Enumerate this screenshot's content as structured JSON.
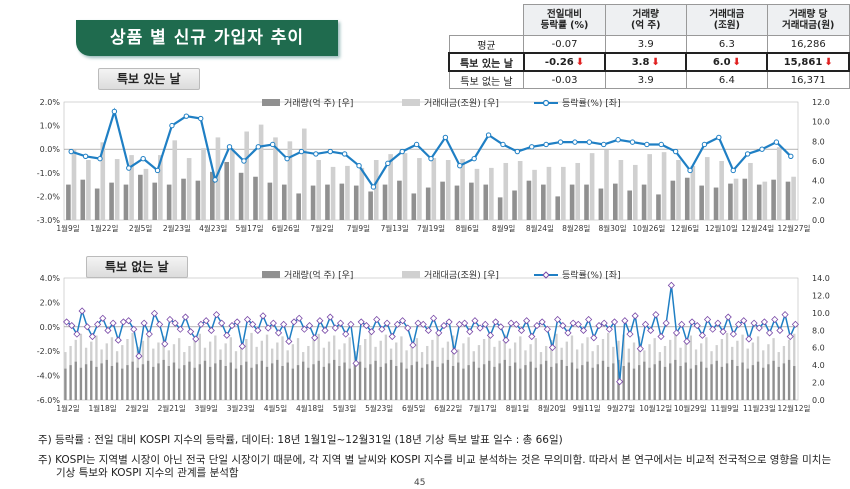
{
  "title": "상품 별 신규 가입자 추이",
  "table": {
    "headers": [
      "",
      "전일대비\n등락률 (%)",
      "거래량\n(억 주)",
      "거래대금\n(조원)",
      "거래량 당\n거래대금(원)"
    ],
    "rows": [
      {
        "label": "평균",
        "values": [
          "-0.07",
          "3.9",
          "6.3",
          "16,286"
        ],
        "arrows": [
          false,
          false,
          false,
          false
        ],
        "highlight": false
      },
      {
        "label": "특보 있는 날",
        "values": [
          "-0.26",
          "3.8",
          "6.0",
          "15,861"
        ],
        "arrows": [
          true,
          true,
          true,
          true
        ],
        "highlight": true
      },
      {
        "label": "특보 없는 날",
        "values": [
          "-0.03",
          "3.9",
          "6.4",
          "16,371"
        ],
        "arrows": [
          false,
          false,
          false,
          false
        ],
        "highlight": false
      }
    ]
  },
  "colors": {
    "volume": "#909090",
    "value": "#d0d0d0",
    "line": "#1f7fc4",
    "marker_fill": "#ffffff",
    "marker1": "#1f7fc4",
    "marker2": "#7a4aa8",
    "arrow": "#e02020"
  },
  "chart_data": [
    {
      "type": "bar+line",
      "subtitle": "특보 있는 날",
      "legend": [
        "거래량(억 주) [우]",
        "거래대금(조원) [우]",
        "등락률(%) [좌]"
      ],
      "yleft": {
        "min": -3.0,
        "max": 2.0,
        "ticks": [
          "2.0%",
          "1.0%",
          "0.0%",
          "-1.0%",
          "-2.0%",
          "-3.0%"
        ]
      },
      "yright": {
        "min": 0,
        "max": 12,
        "ticks": [
          "12.0",
          "10.0",
          "8.0",
          "6.0",
          "4.0",
          "2.0",
          "0.0"
        ]
      },
      "xticks": [
        "1월9일",
        "1월22일",
        "2월5일",
        "2월23일",
        "4월23일",
        "5월17일",
        "6월26일",
        "7월2일",
        "7월9일",
        "7월13일",
        "7월19일",
        "8월6일",
        "8월9일",
        "8월24일",
        "8월28일",
        "8월30일",
        "10월26일",
        "12월6일",
        "12월10일",
        "12월24일",
        "12월27일"
      ],
      "volume": [
        3.6,
        4.1,
        3.2,
        3.8,
        3.6,
        4.6,
        3.8,
        3.6,
        4.2,
        4.0,
        4.9,
        5.9,
        4.8,
        4.4,
        3.8,
        3.6,
        2.7,
        3.5,
        3.6,
        3.7,
        3.5,
        2.9,
        3.6,
        4.0,
        2.7,
        3.3,
        3.9,
        3.5,
        3.8,
        3.6,
        2.3,
        3.0,
        4.0,
        3.6,
        2.4,
        3.6,
        3.6,
        3.2,
        3.7,
        3.0,
        3.6,
        2.6,
        4.0,
        4.3,
        3.5,
        3.3,
        3.7,
        4.2,
        3.6,
        4.1,
        3.9
      ],
      "value": [
        7.2,
        6.1,
        7.9,
        6.2,
        6.6,
        5.2,
        6.6,
        8.1,
        6.3,
        7.3,
        8.4,
        7.3,
        9.0,
        9.7,
        8.4,
        8.0,
        9.3,
        6.1,
        5.4,
        5.5,
        5.3,
        6.1,
        6.7,
        6.8,
        6.3,
        6.3,
        6.1,
        6.2,
        5.2,
        5.3,
        5.8,
        6.0,
        5.1,
        5.4,
        5.4,
        5.8,
        6.8,
        7.2,
        6.1,
        5.6,
        6.7,
        6.9,
        6.1,
        5.5,
        6.4,
        6.0,
        4.2,
        5.8,
        3.9,
        7.4,
        4.4
      ],
      "pct": [
        -0.1,
        -0.3,
        -0.4,
        1.6,
        -0.8,
        -0.4,
        -0.9,
        1.0,
        1.4,
        1.3,
        -1.3,
        0.1,
        -0.5,
        0.1,
        0.2,
        -0.4,
        -0.1,
        -0.2,
        -0.1,
        -0.2,
        -0.7,
        -1.6,
        -0.6,
        -0.1,
        0.2,
        -0.4,
        0.5,
        -0.7,
        -0.4,
        0.6,
        0.2,
        -0.1,
        0.1,
        0.2,
        0.3,
        0.3,
        0.3,
        0.2,
        0.4,
        0.3,
        0.2,
        0.2,
        -0.1,
        -0.9,
        0.2,
        0.5,
        -0.9,
        -0.2,
        0.0,
        0.3,
        -0.3
      ]
    },
    {
      "type": "bar+line",
      "subtitle": "특보 없는 날",
      "legend": [
        "거래량(억 주) [우]",
        "거래대금(조원) [우]",
        "등락률(%) [좌]"
      ],
      "yleft": {
        "min": -6.0,
        "max": 4.0,
        "ticks": [
          "4.0%",
          "2.0%",
          "0.0%",
          "-2.0%",
          "-4.0%",
          "-6.0%"
        ]
      },
      "yright": {
        "min": 0,
        "max": 14,
        "ticks": [
          "14.0",
          "12.0",
          "10.0",
          "8.0",
          "6.0",
          "4.0",
          "2.0",
          "0.0"
        ]
      },
      "xticks": [
        "1월2일",
        "1월18일",
        "2월2일",
        "2월21일",
        "3월9일",
        "3월23일",
        "4월5일",
        "4월18일",
        "5월3일",
        "5월23일",
        "6월5일",
        "6월22일",
        "7월17일",
        "8월1일",
        "8월20일",
        "9월11일",
        "9월27일",
        "10월12일",
        "10월29일",
        "11월9일",
        "11월23일",
        "12월12일"
      ],
      "pct": [
        0.4,
        0.1,
        -0.6,
        1.3,
        0.0,
        -0.8,
        0.2,
        0.7,
        -0.3,
        0.3,
        -1.1,
        0.4,
        0.5,
        -0.2,
        -2.4,
        0.3,
        -0.6,
        1.1,
        0.2,
        -1.4,
        0.6,
        0.3,
        -0.2,
        0.8,
        -0.4,
        -1.0,
        0.2,
        0.5,
        -0.3,
        1.0,
        0.3,
        -0.7,
        0.1,
        0.4,
        -1.6,
        0.6,
        0.2,
        -0.3,
        0.9,
        -0.1,
        0.3,
        -0.5,
        0.2,
        -1.2,
        0.4,
        0.7,
        -0.2,
        0.1,
        -0.9,
        0.5,
        -0.3,
        0.8,
        -0.1,
        0.3,
        -0.6,
        0.2,
        -3.0,
        0.4,
        0.1,
        -0.4,
        0.6,
        -0.2,
        0.3,
        -0.8,
        0.2,
        0.5,
        -0.1,
        -1.5,
        0.3,
        0.2,
        -0.3,
        0.7,
        -0.5,
        0.1,
        0.4,
        -2.0,
        0.2,
        0.3,
        -0.4,
        0.5,
        -0.1,
        0.2,
        -0.7,
        0.4,
        0.0,
        -1.1,
        0.3,
        0.2,
        -0.3,
        0.5,
        -0.8,
        0.1,
        0.4,
        -0.2,
        -1.7,
        0.6,
        0.1,
        -0.5,
        0.3,
        0.2,
        -0.3,
        0.6,
        -0.9,
        0.1,
        0.3,
        -0.2,
        0.4,
        -4.5,
        0.5,
        -0.6,
        0.9,
        -1.8,
        0.2,
        -0.3,
        1.0,
        -0.8,
        0.3,
        3.4,
        -0.5,
        0.2,
        -1.2,
        0.4,
        0.1,
        -0.7,
        0.6,
        -0.2,
        0.3,
        -0.4,
        0.8,
        -0.6,
        0.2,
        0.5,
        -1.0,
        0.3,
        -0.1,
        0.4,
        -0.5,
        0.6,
        -0.3,
        1.0,
        -0.8,
        0.2
      ]
    }
  ],
  "notes": [
    "주) 등락률 : 전일 대비 KOSPI 지수의 등락률, 데이터: 18년 1월1일~12월31일 (18년 기상 특보 발표 일수 : 총 66일)",
    "주) KOSPI는 지역별 시장이 아닌 전국 단일 시장이기 때문에, 각 지역 별 날씨와 KOSPI 지수를 비교 분석하는 것은 무의미함. 따라서 본 연구에서는 비교적 전국적으로 영향을 미치는",
    "기상 특보와 KOSPI 지수의 관계를 분석함"
  ],
  "page_number": "45"
}
